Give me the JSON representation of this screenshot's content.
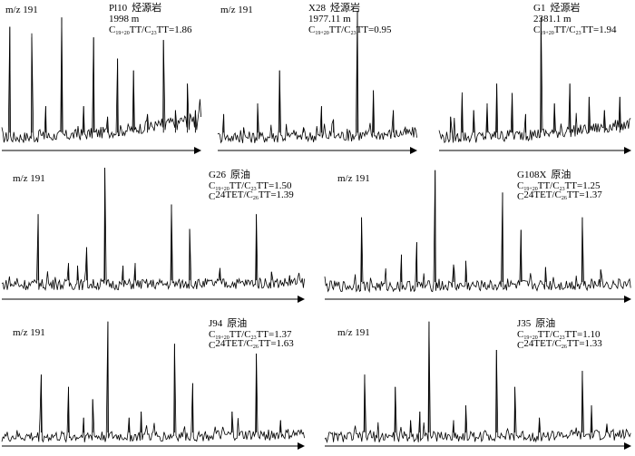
{
  "figure": {
    "line_color": "#000000",
    "background": "#ffffff"
  },
  "chart_data": [
    {
      "type": "line",
      "ion_label": "m/z 191",
      "sample": "Pl10",
      "sample_type": "烃源岩",
      "depth": "1998 m",
      "ratios": [
        {
          "a": "C",
          "as": "19+20",
          "b": "TT/C",
          "bs": "23",
          "c": "TT=1.86"
        }
      ],
      "peaks": [
        {
          "x": 0.04,
          "h": 0.88
        },
        {
          "x": 0.15,
          "h": 0.8
        },
        {
          "x": 0.22,
          "h": 0.28
        },
        {
          "x": 0.3,
          "h": 0.95
        },
        {
          "x": 0.41,
          "h": 0.28
        },
        {
          "x": 0.46,
          "h": 0.8
        },
        {
          "x": 0.53,
          "h": 0.2
        },
        {
          "x": 0.58,
          "h": 0.64
        },
        {
          "x": 0.66,
          "h": 0.55
        },
        {
          "x": 0.73,
          "h": 0.22
        },
        {
          "x": 0.81,
          "h": 0.78
        },
        {
          "x": 0.87,
          "h": 0.25
        },
        {
          "x": 0.93,
          "h": 0.45
        },
        {
          "x": 0.97,
          "h": 0.25
        }
      ],
      "baseline_rise": 0.45
    },
    {
      "type": "line",
      "ion_label": "m/z 191",
      "sample": "X28",
      "sample_type": "烃源岩",
      "depth": "1977.11 m",
      "ratios": [
        {
          "a": "C",
          "as": "19+20",
          "b": "TT/C",
          "bs": "23",
          "c": "TT=0.95"
        }
      ],
      "peaks": [
        {
          "x": 0.03,
          "h": 0.22
        },
        {
          "x": 0.13,
          "h": 0.12
        },
        {
          "x": 0.2,
          "h": 0.3
        },
        {
          "x": 0.31,
          "h": 0.55
        },
        {
          "x": 0.43,
          "h": 0.12
        },
        {
          "x": 0.52,
          "h": 0.28
        },
        {
          "x": 0.58,
          "h": 0.18
        },
        {
          "x": 0.7,
          "h": 1.0
        },
        {
          "x": 0.78,
          "h": 0.4
        },
        {
          "x": 0.88,
          "h": 0.25
        },
        {
          "x": 0.94,
          "h": 0.12
        }
      ],
      "baseline_rise": 0.1
    },
    {
      "type": "line",
      "ion_label": "",
      "sample": "G1",
      "sample_type": "烃源岩",
      "depth": "2381.1 m",
      "ratios": [
        {
          "a": "C",
          "as": "19+20",
          "b": "TT/C",
          "bs": "23",
          "c": "TT=1.94"
        }
      ],
      "peaks": [
        {
          "x": 0.06,
          "h": 0.2
        },
        {
          "x": 0.12,
          "h": 0.3
        },
        {
          "x": 0.18,
          "h": 0.25
        },
        {
          "x": 0.25,
          "h": 0.3
        },
        {
          "x": 0.3,
          "h": 0.45
        },
        {
          "x": 0.38,
          "h": 0.38
        },
        {
          "x": 0.45,
          "h": 0.22
        },
        {
          "x": 0.53,
          "h": 0.95
        },
        {
          "x": 0.6,
          "h": 0.3
        },
        {
          "x": 0.68,
          "h": 0.45
        },
        {
          "x": 0.78,
          "h": 0.35
        },
        {
          "x": 0.86,
          "h": 0.25
        },
        {
          "x": 0.94,
          "h": 0.35
        }
      ],
      "baseline_rise": 0.3
    },
    {
      "type": "line",
      "ion_label": "m/z 191",
      "sample": "G26",
      "sample_type": "原油",
      "depth": "",
      "ratios": [
        {
          "a": "C",
          "as": "19+20",
          "b": "TT/C",
          "bs": "23",
          "c": "TT=1.50"
        },
        {
          "a": "C",
          "as": "",
          "b": "24TET/C",
          "bs": "26",
          "c": "TT=1.39"
        }
      ],
      "peaks": [
        {
          "x": 0.12,
          "h": 0.62
        },
        {
          "x": 0.22,
          "h": 0.22
        },
        {
          "x": 0.25,
          "h": 0.2
        },
        {
          "x": 0.28,
          "h": 0.35
        },
        {
          "x": 0.34,
          "h": 1.0
        },
        {
          "x": 0.4,
          "h": 0.2
        },
        {
          "x": 0.44,
          "h": 0.22
        },
        {
          "x": 0.56,
          "h": 0.7
        },
        {
          "x": 0.62,
          "h": 0.5
        },
        {
          "x": 0.72,
          "h": 0.18
        },
        {
          "x": 0.84,
          "h": 0.62
        },
        {
          "x": 0.89,
          "h": 0.15
        },
        {
          "x": 0.95,
          "h": 0.12
        }
      ],
      "baseline_rise": 0.05
    },
    {
      "type": "line",
      "ion_label": "m/z 191",
      "sample": "G108X",
      "sample_type": "原油",
      "depth": "",
      "ratios": [
        {
          "a": "C",
          "as": "19+20",
          "b": "TT/C",
          "bs": "23",
          "c": "TT=1.25"
        },
        {
          "a": "C",
          "as": "",
          "b": "24TET/C",
          "bs": "26",
          "c": "TT=1.37"
        }
      ],
      "peaks": [
        {
          "x": 0.12,
          "h": 0.6
        },
        {
          "x": 0.25,
          "h": 0.3
        },
        {
          "x": 0.3,
          "h": 0.4
        },
        {
          "x": 0.36,
          "h": 0.98
        },
        {
          "x": 0.42,
          "h": 0.22
        },
        {
          "x": 0.46,
          "h": 0.25
        },
        {
          "x": 0.58,
          "h": 0.8
        },
        {
          "x": 0.64,
          "h": 0.5
        },
        {
          "x": 0.72,
          "h": 0.2
        },
        {
          "x": 0.84,
          "h": 0.6
        },
        {
          "x": 0.9,
          "h": 0.18
        }
      ],
      "baseline_rise": 0.05
    },
    {
      "type": "line",
      "ion_label": "m/z 191",
      "sample": "J94",
      "sample_type": "原油",
      "depth": "",
      "ratios": [
        {
          "a": "C",
          "as": "19+20",
          "b": "TT/C",
          "bs": "23",
          "c": "TT=1.37"
        },
        {
          "a": "C",
          "as": "",
          "b": "24TET/C",
          "bs": "26",
          "c": "TT=1.63"
        }
      ],
      "peaks": [
        {
          "x": 0.13,
          "h": 0.55
        },
        {
          "x": 0.22,
          "h": 0.45
        },
        {
          "x": 0.27,
          "h": 0.2
        },
        {
          "x": 0.3,
          "h": 0.35
        },
        {
          "x": 0.35,
          "h": 0.98
        },
        {
          "x": 0.42,
          "h": 0.2
        },
        {
          "x": 0.46,
          "h": 0.25
        },
        {
          "x": 0.57,
          "h": 0.8
        },
        {
          "x": 0.63,
          "h": 0.48
        },
        {
          "x": 0.76,
          "h": 0.25
        },
        {
          "x": 0.84,
          "h": 0.72
        },
        {
          "x": 0.92,
          "h": 0.18
        }
      ],
      "baseline_rise": 0.06
    },
    {
      "type": "line",
      "ion_label": "m/z 191",
      "sample": "J35",
      "sample_type": "原油",
      "depth": "",
      "ratios": [
        {
          "a": "C",
          "as": "19+20",
          "b": "TT/C",
          "bs": "23",
          "c": "TT=1.10"
        },
        {
          "a": "C",
          "as": "",
          "b": "24TET/C",
          "bs": "26",
          "c": "TT=1.33"
        }
      ],
      "peaks": [
        {
          "x": 0.13,
          "h": 0.55
        },
        {
          "x": 0.23,
          "h": 0.45
        },
        {
          "x": 0.28,
          "h": 0.18
        },
        {
          "x": 0.31,
          "h": 0.25
        },
        {
          "x": 0.34,
          "h": 0.98
        },
        {
          "x": 0.42,
          "h": 0.18
        },
        {
          "x": 0.46,
          "h": 0.3
        },
        {
          "x": 0.56,
          "h": 0.75
        },
        {
          "x": 0.62,
          "h": 0.45
        },
        {
          "x": 0.7,
          "h": 0.2
        },
        {
          "x": 0.84,
          "h": 0.58
        },
        {
          "x": 0.87,
          "h": 0.3
        },
        {
          "x": 0.92,
          "h": 0.15
        }
      ],
      "baseline_rise": 0.05
    }
  ]
}
